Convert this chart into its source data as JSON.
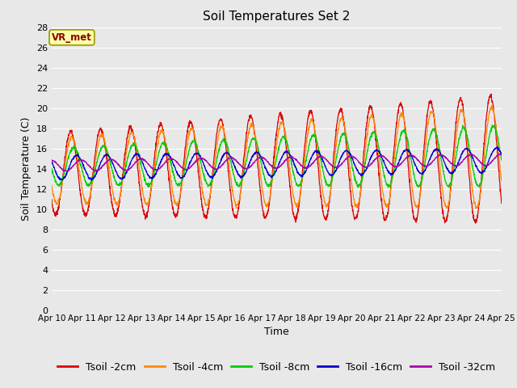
{
  "title": "Soil Temperatures Set 2",
  "xlabel": "Time",
  "ylabel": "Soil Temperature (C)",
  "ylim": [
    0,
    28
  ],
  "yticks": [
    0,
    2,
    4,
    6,
    8,
    10,
    12,
    14,
    16,
    18,
    20,
    22,
    24,
    26,
    28
  ],
  "x_labels": [
    "Apr 10",
    "Apr 11",
    "Apr 12",
    "Apr 13",
    "Apr 14",
    "Apr 15",
    "Apr 16",
    "Apr 17",
    "Apr 18",
    "Apr 19",
    "Apr 20",
    "Apr 21",
    "Apr 22",
    "Apr 23",
    "Apr 24",
    "Apr 25"
  ],
  "annotation_label": "VR_met",
  "series_colors": [
    "#dd0000",
    "#ff8800",
    "#00cc00",
    "#0000cc",
    "#aa00aa"
  ],
  "series_labels": [
    "Tsoil -2cm",
    "Tsoil -4cm",
    "Tsoil -8cm",
    "Tsoil -16cm",
    "Tsoil -32cm"
  ],
  "background_color": "#e8e8e8",
  "plot_bg_color": "#e8e8e8",
  "title_fontsize": 11,
  "axis_fontsize": 9,
  "tick_fontsize": 8,
  "legend_fontsize": 9
}
